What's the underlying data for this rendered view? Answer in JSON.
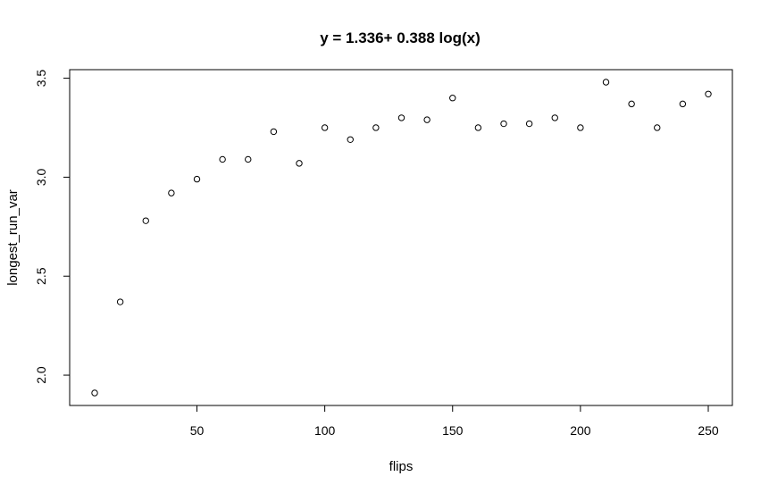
{
  "chart_data": {
    "type": "scatter",
    "title": "y = 1.336+ 0.388 log(x)",
    "xlabel": "flips",
    "ylabel": "longest_run_var",
    "xlim": [
      10,
      250
    ],
    "ylim": [
      1.91,
      3.48
    ],
    "x_ticks": [
      "50",
      "100",
      "150",
      "200",
      "250"
    ],
    "y_ticks": [
      "2.0",
      "2.5",
      "3.0",
      "3.5"
    ],
    "grid": false,
    "legend": "none",
    "x": [
      10,
      20,
      30,
      40,
      50,
      60,
      70,
      80,
      90,
      100,
      110,
      120,
      130,
      140,
      150,
      160,
      170,
      180,
      190,
      200,
      210,
      220,
      230,
      240,
      250
    ],
    "y": [
      1.91,
      2.37,
      2.78,
      2.92,
      2.99,
      3.09,
      3.09,
      3.23,
      3.07,
      3.25,
      3.19,
      3.25,
      3.3,
      3.29,
      3.4,
      3.25,
      3.27,
      3.27,
      3.3,
      3.25,
      3.48,
      3.37,
      3.25,
      3.37,
      3.42
    ],
    "marker_color": "#000000"
  }
}
